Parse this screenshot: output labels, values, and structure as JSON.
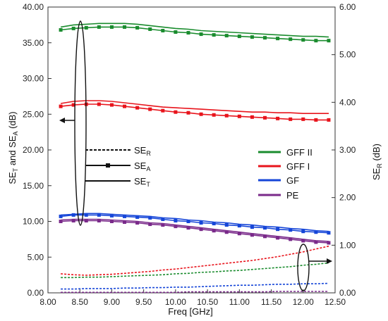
{
  "chart_data": {
    "type": "line",
    "xlabel": "Freq [GHz]",
    "ylabel_left": {
      "base": "SE",
      "sub1": "T",
      "mid": " and SE",
      "sub2": "A",
      "unit": " (dB)"
    },
    "ylabel_right": {
      "base": "SE",
      "sub": "R",
      "unit": " (dB)"
    },
    "xlim": [
      8.0,
      12.5
    ],
    "ylim_left": [
      0,
      40
    ],
    "ylim_right": [
      0,
      6
    ],
    "xticks": [
      "8.00",
      "8.50",
      "9.00",
      "9.50",
      "10.00",
      "10.50",
      "11.00",
      "11.50",
      "12.00",
      "12.50"
    ],
    "yticks_left": [
      "0.00",
      "5.00",
      "10.00",
      "15.00",
      "20.00",
      "25.00",
      "30.00",
      "35.00",
      "40.00"
    ],
    "yticks_right": [
      "0.00",
      "1.00",
      "2.00",
      "3.00",
      "4.00",
      "5.00",
      "6.00"
    ],
    "grid": false,
    "x": [
      8.2,
      8.4,
      8.6,
      8.8,
      9.0,
      9.2,
      9.4,
      9.6,
      9.8,
      10.0,
      10.2,
      10.4,
      10.6,
      10.8,
      11.0,
      11.2,
      11.4,
      11.6,
      11.8,
      12.0,
      12.2,
      12.4
    ],
    "materials": [
      {
        "name": "GFF II",
        "color": "#1a8c2e"
      },
      {
        "name": "GFF I",
        "color": "#e8141c"
      },
      {
        "name": "GF",
        "color": "#1646d8"
      },
      {
        "name": "PE",
        "color": "#7a2a8a"
      }
    ],
    "line_types": [
      {
        "base": "SE",
        "sub": "R",
        "style": "dashed"
      },
      {
        "base": "SE",
        "sub": "A",
        "style": "marker"
      },
      {
        "base": "SE",
        "sub": "T",
        "style": "solid"
      }
    ],
    "series": [
      {
        "material": "GFF II",
        "kind": "SE_T",
        "axis": "left",
        "values": [
          37.2,
          37.5,
          37.6,
          37.7,
          37.7,
          37.7,
          37.6,
          37.4,
          37.2,
          37.0,
          36.9,
          36.7,
          36.6,
          36.5,
          36.4,
          36.3,
          36.2,
          36.1,
          36.0,
          35.9,
          35.9,
          35.8
        ]
      },
      {
        "material": "GFF II",
        "kind": "SE_A",
        "axis": "left",
        "values": [
          36.8,
          37.0,
          37.1,
          37.2,
          37.2,
          37.2,
          37.1,
          36.9,
          36.7,
          36.5,
          36.4,
          36.2,
          36.1,
          36.0,
          35.9,
          35.8,
          35.7,
          35.6,
          35.5,
          35.4,
          35.3,
          35.3
        ]
      },
      {
        "material": "GFF I",
        "kind": "SE_T",
        "axis": "left",
        "values": [
          26.5,
          26.8,
          26.9,
          26.9,
          26.8,
          26.6,
          26.4,
          26.2,
          26.0,
          25.9,
          25.8,
          25.7,
          25.6,
          25.5,
          25.4,
          25.3,
          25.3,
          25.2,
          25.2,
          25.1,
          25.1,
          25.1
        ]
      },
      {
        "material": "GFF I",
        "kind": "SE_A",
        "axis": "left",
        "values": [
          26.1,
          26.3,
          26.4,
          26.4,
          26.3,
          26.1,
          25.9,
          25.7,
          25.5,
          25.3,
          25.2,
          25.0,
          24.9,
          24.8,
          24.7,
          24.6,
          24.5,
          24.4,
          24.3,
          24.3,
          24.2,
          24.2
        ]
      },
      {
        "material": "GF",
        "kind": "SE_T",
        "axis": "left",
        "values": [
          10.9,
          11.0,
          11.1,
          11.1,
          11.0,
          10.9,
          10.8,
          10.7,
          10.5,
          10.4,
          10.2,
          10.1,
          9.9,
          9.8,
          9.6,
          9.5,
          9.3,
          9.2,
          9.0,
          8.9,
          8.7,
          8.6
        ]
      },
      {
        "material": "GF",
        "kind": "SE_A",
        "axis": "left",
        "values": [
          10.7,
          10.9,
          10.9,
          10.9,
          10.8,
          10.7,
          10.6,
          10.5,
          10.3,
          10.1,
          10.0,
          9.8,
          9.7,
          9.5,
          9.4,
          9.2,
          9.1,
          8.9,
          8.8,
          8.6,
          8.5,
          8.4
        ]
      },
      {
        "material": "PE",
        "kind": "SE_T",
        "axis": "left",
        "values": [
          10.2,
          10.3,
          10.3,
          10.3,
          10.2,
          10.1,
          10.0,
          9.8,
          9.7,
          9.5,
          9.3,
          9.1,
          8.9,
          8.7,
          8.5,
          8.3,
          8.1,
          7.9,
          7.7,
          7.5,
          7.3,
          7.2
        ]
      },
      {
        "material": "PE",
        "kind": "SE_A",
        "axis": "left",
        "values": [
          10.0,
          10.1,
          10.1,
          10.1,
          10.0,
          9.9,
          9.8,
          9.6,
          9.5,
          9.3,
          9.1,
          8.9,
          8.7,
          8.5,
          8.3,
          8.1,
          7.9,
          7.7,
          7.5,
          7.3,
          7.1,
          7.0
        ]
      },
      {
        "material": "GFF I",
        "kind": "SE_R",
        "axis": "right",
        "values": [
          0.4,
          0.38,
          0.37,
          0.38,
          0.39,
          0.41,
          0.43,
          0.45,
          0.48,
          0.5,
          0.53,
          0.56,
          0.59,
          0.62,
          0.65,
          0.68,
          0.72,
          0.76,
          0.81,
          0.86,
          0.92,
          0.98
        ]
      },
      {
        "material": "GFF II",
        "kind": "SE_R",
        "axis": "right",
        "values": [
          0.32,
          0.32,
          0.33,
          0.33,
          0.34,
          0.35,
          0.36,
          0.37,
          0.38,
          0.4,
          0.41,
          0.43,
          0.44,
          0.46,
          0.47,
          0.49,
          0.51,
          0.53,
          0.55,
          0.58,
          0.6,
          0.63
        ]
      },
      {
        "material": "GF",
        "kind": "SE_R",
        "axis": "right",
        "values": [
          0.08,
          0.08,
          0.09,
          0.09,
          0.09,
          0.1,
          0.1,
          0.11,
          0.11,
          0.12,
          0.12,
          0.13,
          0.14,
          0.15,
          0.16,
          0.16,
          0.17,
          0.18,
          0.18,
          0.19,
          0.19,
          0.2
        ]
      },
      {
        "material": "PE",
        "kind": "SE_R",
        "axis": "right",
        "values": [
          0.01,
          0.01,
          0.01,
          0.01,
          0.01,
          0.01,
          0.01,
          0.01,
          0.01,
          0.01,
          0.02,
          0.02,
          0.02,
          0.02,
          0.02,
          0.02,
          0.02,
          0.03,
          0.03,
          0.03,
          0.03,
          0.03
        ]
      }
    ]
  }
}
